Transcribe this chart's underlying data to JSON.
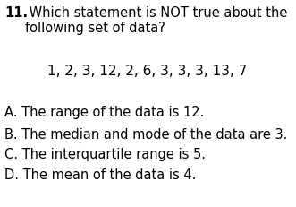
{
  "background_color": "#ffffff",
  "question_number": "11.",
  "question_rest": " Which statement is NOT true about the\nfollowing set of data?",
  "data_line": "1, 2, 3, 12, 2, 6, 3, 3, 3, 13, 7",
  "options": [
    "A. The range of the data is 12.",
    "B. The median and mode of the data are 3.",
    "C. The interquartile range is 5.",
    "D. The mean of the data is 4."
  ],
  "font_size": 10.5,
  "font_size_data": 11.0,
  "text_color": "#000000",
  "fig_width": 3.31,
  "fig_height": 2.31,
  "dpi": 100
}
